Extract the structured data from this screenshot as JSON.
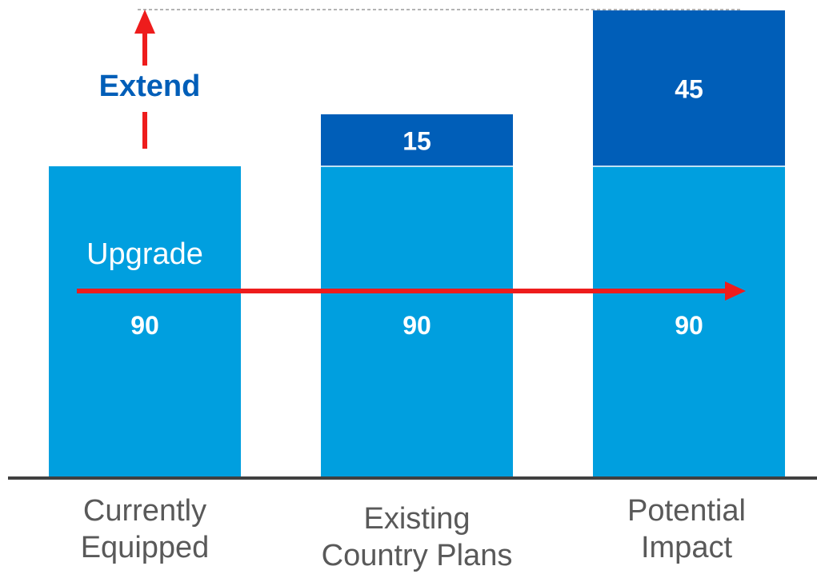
{
  "chart_data": {
    "type": "bar",
    "stacked": true,
    "categories": [
      "Currently Equipped",
      "Existing Country Plans",
      "Potential Impact"
    ],
    "category_lines": [
      [
        "Currently",
        "Equipped"
      ],
      [
        "Existing",
        "Country Plans"
      ],
      [
        "Potential",
        "Impact"
      ]
    ],
    "series": [
      {
        "values": [
          90,
          90,
          90
        ],
        "color": "#009FDF"
      },
      {
        "values": [
          0,
          15,
          45
        ],
        "color": "#005EB8"
      }
    ],
    "ylim": [
      0,
      135
    ],
    "grid": false,
    "legend": "none",
    "annotations": {
      "upgrade": "Upgrade",
      "extend": "Extend",
      "arrow_color": "#EE1C1C",
      "extend_color": "#005EB8"
    }
  }
}
